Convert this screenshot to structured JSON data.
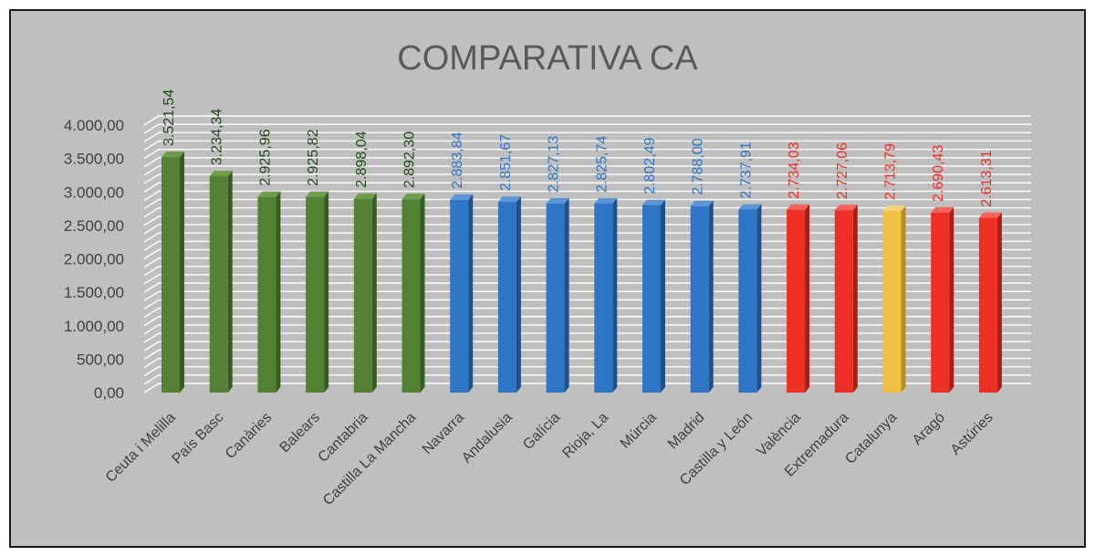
{
  "chart_data": {
    "type": "bar",
    "title": "COMPARATIVA CA",
    "xlabel": "",
    "ylabel": "",
    "ylim": [
      0,
      4000
    ],
    "yticks": [
      "0,00",
      "500,00",
      "1.000,00",
      "1.500,00",
      "2.000,00",
      "2.500,00",
      "3.000,00",
      "3.500,00",
      "4.000,00"
    ],
    "grid": true,
    "legend": "none",
    "categories": [
      "Ceuta i Melilla",
      "País  Basc",
      "Canàries",
      "Balears",
      "Cantabria",
      "Castilla La Mancha",
      "Navarra",
      "Andalusia",
      "Galícia",
      "Rioja, La",
      "Múrcia",
      "Madrid",
      "Castilla y León",
      "València",
      "Extremadura",
      "Catalunya",
      "Aragó",
      "Astúries"
    ],
    "values": [
      3521.54,
      3234.34,
      2925.96,
      2925.82,
      2898.04,
      2892.3,
      2883.84,
      2851.67,
      2827.13,
      2825.74,
      2802.49,
      2788.0,
      2737.91,
      2734.03,
      2727.06,
      2713.79,
      2690.43,
      2613.31
    ],
    "value_labels": [
      "3.521,54",
      "3.234,34",
      "2.925,96",
      "2.925,82",
      "2.898,04",
      "2.892,30",
      "2.883,84",
      "2.851,67",
      "2.827,13",
      "2.825,74",
      "2.802,49",
      "2.788,00",
      "2.737,91",
      "2.734,03",
      "2.727,06",
      "2.713,79",
      "2.690,43",
      "2.613,31"
    ],
    "groups": [
      "green",
      "green",
      "green",
      "green",
      "green",
      "green",
      "blue",
      "blue",
      "blue",
      "blue",
      "blue",
      "blue",
      "blue",
      "red",
      "red",
      "yellow",
      "red",
      "red"
    ]
  },
  "colors": {
    "green": {
      "front": "#548235",
      "side": "#3a5c24",
      "top": "#6e9e4c",
      "label": "#1e4d16"
    },
    "blue": {
      "front": "#2e75c6",
      "side": "#1f508c",
      "top": "#5b95d6",
      "label": "#2e75c6"
    },
    "red": {
      "front": "#ee3024",
      "side": "#a81e16",
      "top": "#f4645a",
      "label": "#ee3024"
    },
    "yellow": {
      "front": "#f2c040",
      "side": "#b88d1e",
      "top": "#f7d577",
      "label": "#ee3024"
    },
    "background": "#bfbfbf",
    "title": "#595959",
    "axis_text": "#404040",
    "gridline": "#ffffff"
  }
}
